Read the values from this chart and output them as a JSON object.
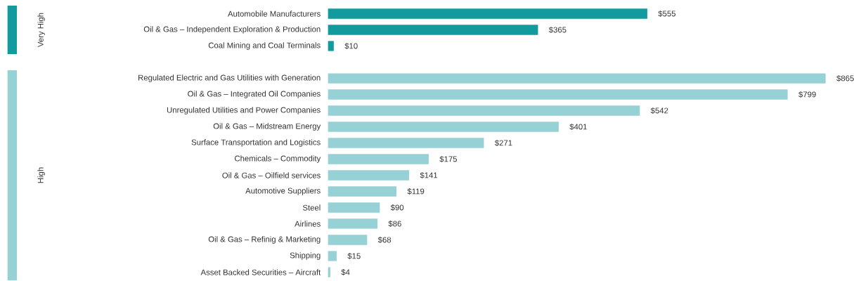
{
  "chart_data": [
    {
      "type": "bar",
      "orientation": "horizontal",
      "ylabel": "Very High",
      "color": "#129a9c",
      "categories": [
        "Automobile Manufacturers",
        "Oil & Gas – Independent Exploration & Production",
        "Coal Mining and Coal Terminals"
      ],
      "values": [
        555,
        365,
        10
      ],
      "value_labels": [
        "$555",
        "$365",
        "$10"
      ]
    },
    {
      "type": "bar",
      "orientation": "horizontal",
      "ylabel": "High",
      "color": "#96d1d5",
      "categories": [
        "Regulated Electric and Gas Utilities with Generation",
        "Oil & Gas – Integrated Oil Companies",
        "Unregulated Utilities and Power Companies",
        "Oil & Gas – Midstream Energy",
        "Surface Transportation and Logistics",
        "Chemicals – Commodity",
        "Oil & Gas – Oilfield services",
        "Automotive Suppliers",
        "Steel",
        "Airlines",
        "Oil & Gas – Refinig & Marketing",
        "Shipping",
        "Asset Backed Securities – Aircraft"
      ],
      "values": [
        865,
        799,
        542,
        401,
        271,
        175,
        141,
        119,
        90,
        86,
        68,
        15,
        4
      ],
      "value_labels": [
        "$865",
        "$799",
        "$542",
        "$401",
        "$271",
        "$175",
        "$141",
        "$119",
        "$90",
        "$86",
        "$68",
        "$15",
        "$4"
      ]
    }
  ]
}
